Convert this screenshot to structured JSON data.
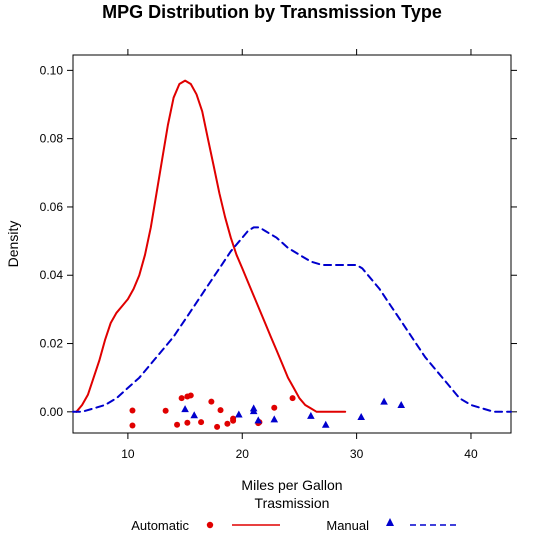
{
  "chart_data": {
    "type": "line",
    "title": "MPG Distribution by Transmission Type",
    "xlabel": "Miles per Gallon",
    "ylabel": "Density",
    "xlim": [
      5.2,
      43.5
    ],
    "ylim": [
      -0.0062,
      0.1045
    ],
    "xticks": [
      10,
      20,
      30,
      40
    ],
    "yticks": [
      0.0,
      0.02,
      0.04,
      0.06,
      0.08,
      0.1
    ],
    "ytick_labels": [
      "0.00",
      "0.02",
      "0.04",
      "0.06",
      "0.08",
      "0.10"
    ],
    "grid": false,
    "legend_title": "Trasmission",
    "legend_position": "bottom",
    "series": [
      {
        "name": "Automatic",
        "color": "#e00000",
        "line_style": "solid",
        "marker": "circle",
        "density_x": [
          5.5,
          6.0,
          6.5,
          7.0,
          7.5,
          8.0,
          8.5,
          9.0,
          9.5,
          10.0,
          10.5,
          11.0,
          11.5,
          12.0,
          12.5,
          13.0,
          13.5,
          14.0,
          14.5,
          15.0,
          15.5,
          16.0,
          16.5,
          17.0,
          17.5,
          18.0,
          18.5,
          19.0,
          19.5,
          20.0,
          20.5,
          21.0,
          21.5,
          22.0,
          22.5,
          23.0,
          23.5,
          24.0,
          24.5,
          25.0,
          25.5,
          26.0,
          26.5,
          27.0,
          27.5,
          28.0,
          28.5,
          29.0
        ],
        "density_y": [
          0.0,
          0.002,
          0.005,
          0.01,
          0.015,
          0.021,
          0.026,
          0.029,
          0.031,
          0.033,
          0.036,
          0.04,
          0.046,
          0.054,
          0.064,
          0.074,
          0.084,
          0.092,
          0.096,
          0.097,
          0.096,
          0.093,
          0.088,
          0.08,
          0.072,
          0.064,
          0.057,
          0.051,
          0.046,
          0.042,
          0.038,
          0.034,
          0.03,
          0.026,
          0.022,
          0.018,
          0.014,
          0.01,
          0.007,
          0.004,
          0.002,
          0.001,
          0.0,
          0.0,
          0.0,
          0.0,
          0.0,
          0.0
        ],
        "points": [
          {
            "x": 10.4,
            "y": 0.0004
          },
          {
            "x": 10.4,
            "y": -0.004
          },
          {
            "x": 13.3,
            "y": 0.0003
          },
          {
            "x": 14.3,
            "y": -0.0038
          },
          {
            "x": 14.7,
            "y": 0.004
          },
          {
            "x": 15.2,
            "y": 0.0045
          },
          {
            "x": 15.2,
            "y": -0.0032
          },
          {
            "x": 15.5,
            "y": 0.0048
          },
          {
            "x": 16.4,
            "y": -0.003
          },
          {
            "x": 17.3,
            "y": 0.003
          },
          {
            "x": 17.8,
            "y": -0.0044
          },
          {
            "x": 18.1,
            "y": 0.0005
          },
          {
            "x": 18.7,
            "y": -0.0035
          },
          {
            "x": 19.2,
            "y": -0.002
          },
          {
            "x": 19.2,
            "y": -0.0026
          },
          {
            "x": 21.4,
            "y": -0.0033
          },
          {
            "x": 21.5,
            "y": -0.003
          },
          {
            "x": 22.8,
            "y": 0.0012
          },
          {
            "x": 24.4,
            "y": 0.004
          }
        ]
      },
      {
        "name": "Manual",
        "color": "#0000cd",
        "line_style": "dashed",
        "marker": "triangle",
        "density_x": [
          5.2,
          6.0,
          7.0,
          8.0,
          9.0,
          10.0,
          11.0,
          12.0,
          13.0,
          14.0,
          15.0,
          16.0,
          17.0,
          18.0,
          19.0,
          20.0,
          20.5,
          21.0,
          21.5,
          22.0,
          23.0,
          24.0,
          25.0,
          26.0,
          27.0,
          28.0,
          29.0,
          30.0,
          30.5,
          31.0,
          32.0,
          33.0,
          34.0,
          35.0,
          36.0,
          37.0,
          38.0,
          39.0,
          40.0,
          41.0,
          42.0,
          43.5
        ],
        "density_y": [
          0.0,
          0.0,
          0.001,
          0.002,
          0.004,
          0.007,
          0.01,
          0.014,
          0.018,
          0.022,
          0.027,
          0.032,
          0.037,
          0.042,
          0.047,
          0.051,
          0.053,
          0.054,
          0.054,
          0.053,
          0.051,
          0.048,
          0.046,
          0.044,
          0.043,
          0.043,
          0.043,
          0.043,
          0.042,
          0.04,
          0.036,
          0.031,
          0.026,
          0.021,
          0.016,
          0.012,
          0.008,
          0.004,
          0.002,
          0.001,
          0.0,
          0.0
        ],
        "points": [
          {
            "x": 15.0,
            "y": 0.0008
          },
          {
            "x": 15.8,
            "y": -0.001
          },
          {
            "x": 19.7,
            "y": -0.0008
          },
          {
            "x": 21.0,
            "y": 0.001
          },
          {
            "x": 21.0,
            "y": 0.0002
          },
          {
            "x": 21.4,
            "y": -0.0025
          },
          {
            "x": 22.8,
            "y": -0.0022
          },
          {
            "x": 26.0,
            "y": -0.0012
          },
          {
            "x": 27.3,
            "y": -0.0038
          },
          {
            "x": 30.4,
            "y": -0.0015
          },
          {
            "x": 32.4,
            "y": 0.003
          },
          {
            "x": 33.9,
            "y": 0.002
          }
        ]
      }
    ]
  }
}
